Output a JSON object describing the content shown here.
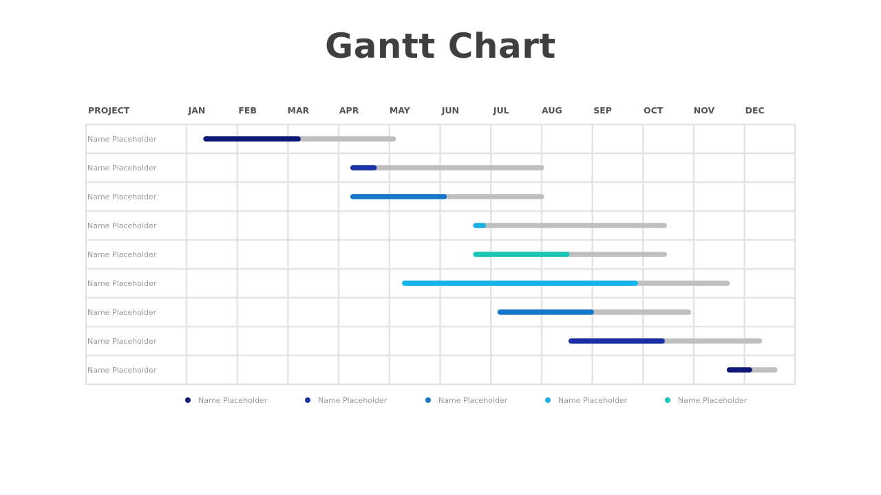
{
  "chart_data": {
    "type": "gantt",
    "title": "Gantt Chart",
    "project_header": "PROJECT",
    "months": [
      "JAN",
      "FEB",
      "MAR",
      "APR",
      "MAY",
      "JUN",
      "JUL",
      "AUG",
      "SEP",
      "OCT",
      "NOV",
      "DEC"
    ],
    "tasks": [
      {
        "name": "Name Placeholder",
        "start": 0.38,
        "end": 4.08,
        "progress_end": 2.2,
        "color": "#0d1a7a"
      },
      {
        "name": "Name Placeholder",
        "start": 3.28,
        "end": 7.0,
        "progress_end": 3.7,
        "color": "#1a33a8"
      },
      {
        "name": "Name Placeholder",
        "start": 3.28,
        "end": 7.0,
        "progress_end": 5.08,
        "color": "#1477c9"
      },
      {
        "name": "Name Placeholder",
        "start": 5.7,
        "end": 9.42,
        "progress_end": 5.85,
        "color": "#1ab2e6"
      },
      {
        "name": "Name Placeholder",
        "start": 5.7,
        "end": 9.42,
        "progress_end": 7.5,
        "color": "#19c6b4"
      },
      {
        "name": "Name Placeholder",
        "start": 4.3,
        "end": 10.66,
        "progress_end": 8.85,
        "color": "#12b3e8"
      },
      {
        "name": "Name Placeholder",
        "start": 6.18,
        "end": 9.9,
        "progress_end": 7.98,
        "color": "#1477c9"
      },
      {
        "name": "Name Placeholder",
        "start": 7.58,
        "end": 11.3,
        "progress_end": 9.38,
        "color": "#1a2fa8"
      },
      {
        "name": "Name Placeholder",
        "start": 10.7,
        "end": 11.6,
        "progress_end": 11.1,
        "color": "#0d1a7a"
      }
    ],
    "remaining_color": "#bfbfbf",
    "grid_color": "#e3e3e3",
    "legend": [
      {
        "label": "Name Placeholder",
        "color": "#0d1a7a"
      },
      {
        "label": "Name Placeholder",
        "color": "#1a33a8"
      },
      {
        "label": "Name Placeholder",
        "color": "#1477c9"
      },
      {
        "label": "Name Placeholder",
        "color": "#1ab2e6"
      },
      {
        "label": "Name Placeholder",
        "color": "#19c6b4"
      }
    ]
  }
}
